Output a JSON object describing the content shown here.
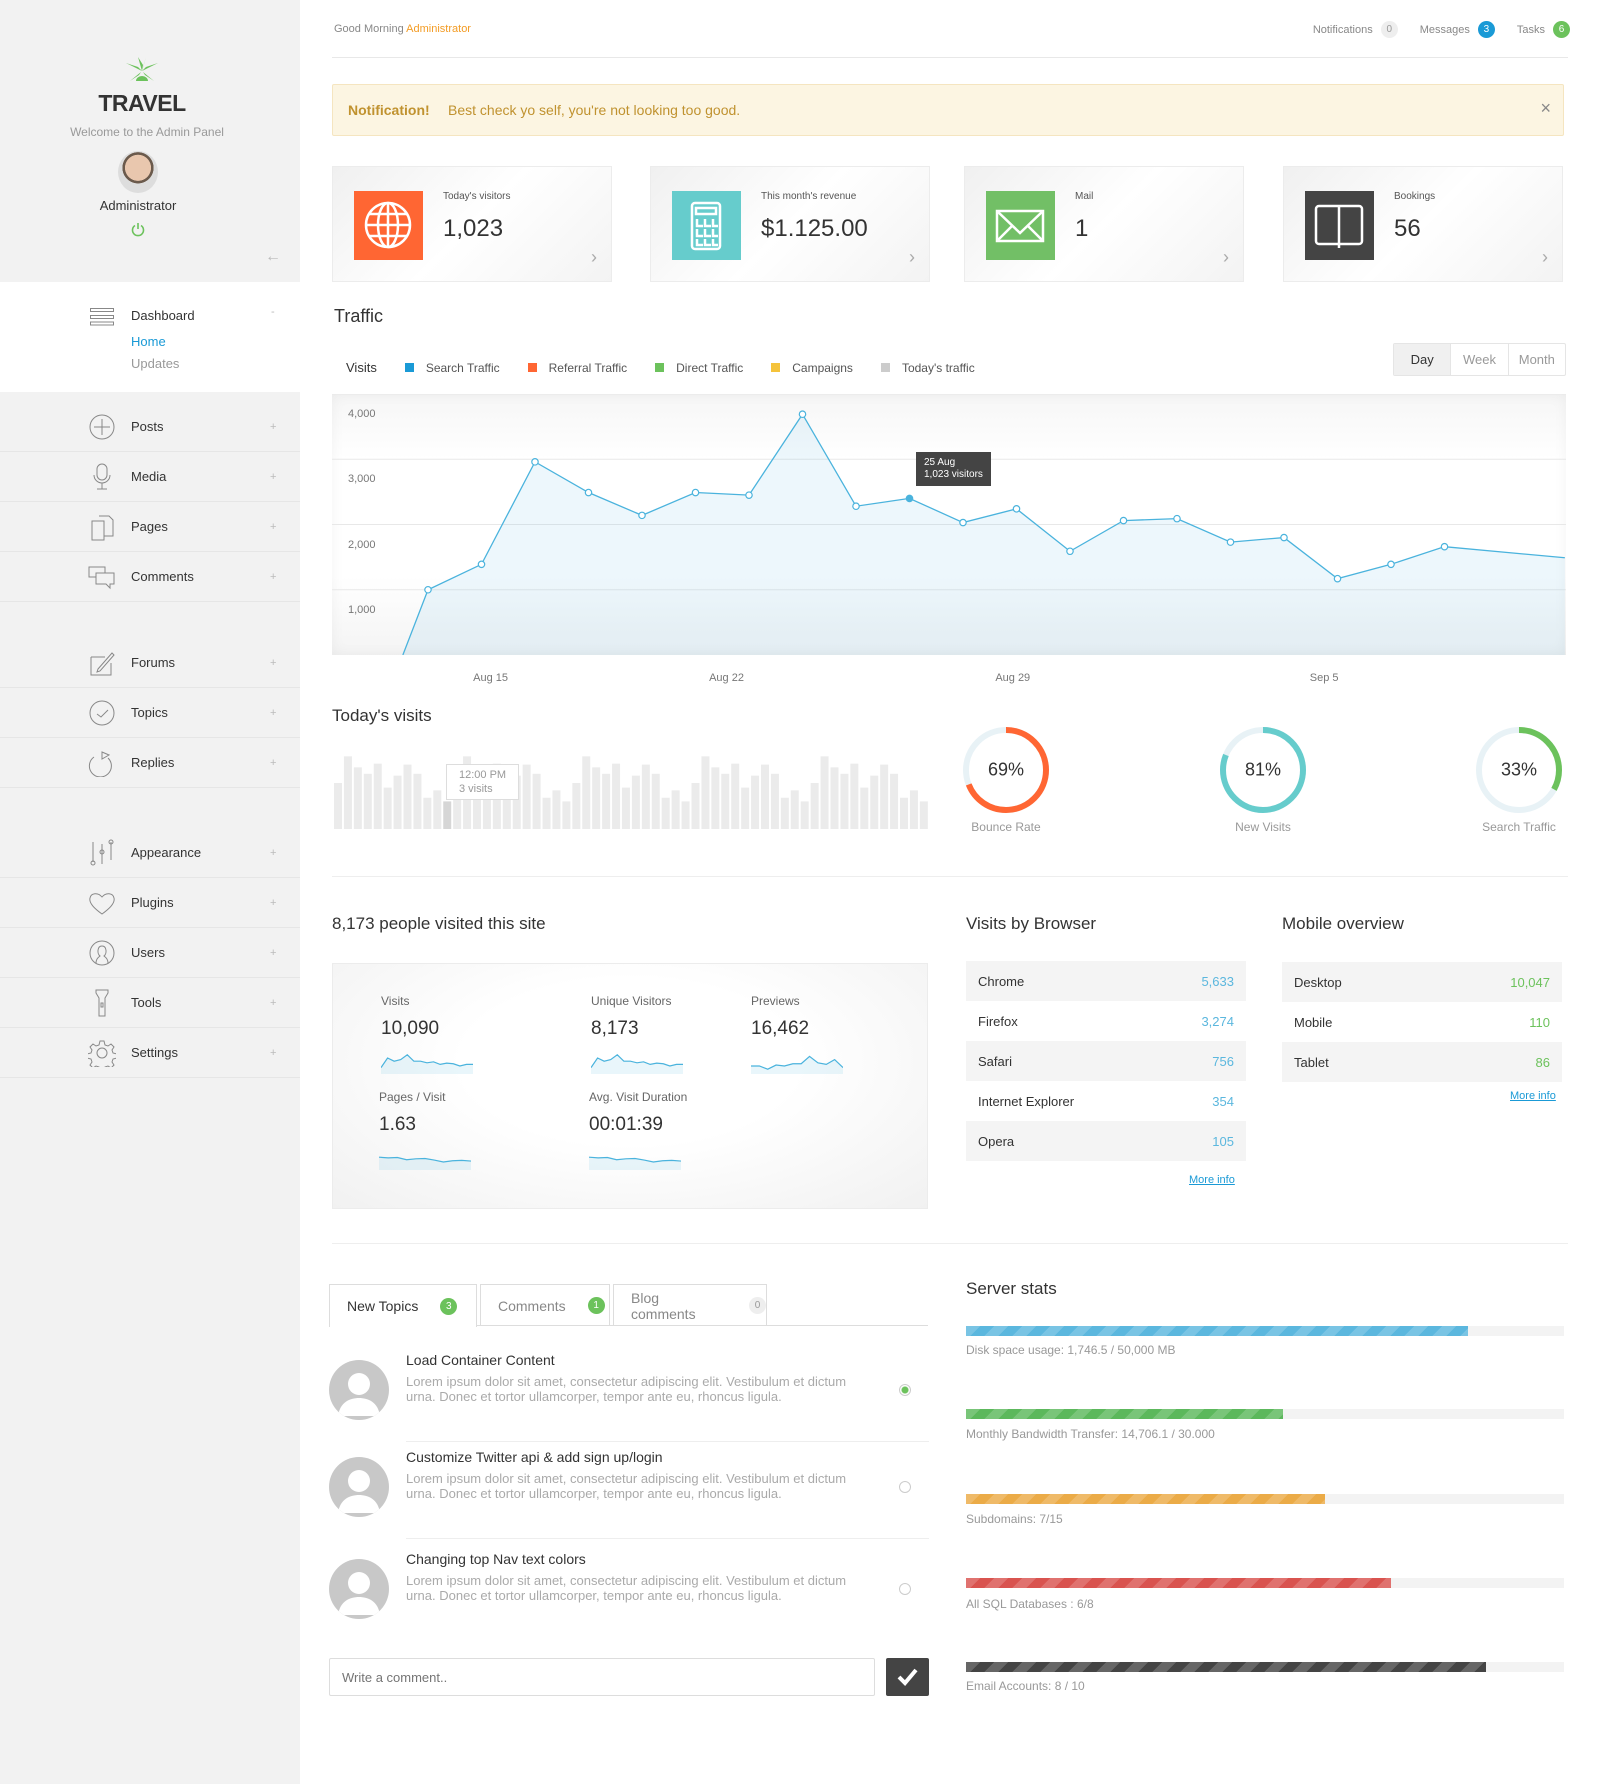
{
  "sidebar": {
    "brand": "TRAVEL",
    "welcome": "Welcome to the Admin Panel",
    "user_name": "Administrator",
    "dashboard": {
      "label": "Dashboard",
      "toggle": "-",
      "sub": [
        "Home",
        "Updates"
      ]
    },
    "groups": [
      [
        {
          "label": "Posts",
          "icon": "plus-circle-icon"
        },
        {
          "label": "Media",
          "icon": "microphone-icon"
        },
        {
          "label": "Pages",
          "icon": "pages-icon"
        },
        {
          "label": "Comments",
          "icon": "comments-icon"
        }
      ],
      [
        {
          "label": "Forums",
          "icon": "edit-icon"
        },
        {
          "label": "Topics",
          "icon": "check-circle-icon"
        },
        {
          "label": "Replies",
          "icon": "reply-icon"
        }
      ],
      [
        {
          "label": "Appearance",
          "icon": "sliders-icon"
        },
        {
          "label": "Plugins",
          "icon": "heart-icon"
        },
        {
          "label": "Users",
          "icon": "user-icon"
        },
        {
          "label": "Tools",
          "icon": "flashlight-icon"
        },
        {
          "label": "Settings",
          "icon": "gear-icon"
        }
      ]
    ],
    "expand_symbol": "+"
  },
  "header": {
    "greeting": "Good Morning",
    "user": "Administrator",
    "nav": [
      {
        "label": "Notifications",
        "count": "0",
        "color": "#eeeeee",
        "text": "#999999"
      },
      {
        "label": "Messages",
        "count": "3",
        "color": "#1a9ad6",
        "text": "#ffffff"
      },
      {
        "label": "Tasks",
        "count": "6",
        "color": "#6cc25c",
        "text": "#ffffff"
      }
    ]
  },
  "alert": {
    "title": "Notification!",
    "message": "Best check yo self, you're not looking too good.",
    "close": "×"
  },
  "cards": [
    {
      "label": "Today's visitors",
      "value": "1,023",
      "color": "#ff6633",
      "icon": "globe-icon"
    },
    {
      "label": "This month's revenue",
      "value": "$1.125.00",
      "color": "#66cccc",
      "icon": "calculator-icon"
    },
    {
      "label": "Mail",
      "value": "1",
      "color": "#72bf66",
      "icon": "mail-icon"
    },
    {
      "label": "Bookings",
      "value": "56",
      "color": "#444444",
      "icon": "book-icon"
    }
  ],
  "traffic": {
    "title": "Traffic",
    "legend_title": "Visits",
    "legend": [
      {
        "label": "Search Traffic",
        "color": "#1a9ad6"
      },
      {
        "label": "Referral Traffic",
        "color": "#ff6633"
      },
      {
        "label": "Direct Traffic",
        "color": "#6cc25c"
      },
      {
        "label": "Campaigns",
        "color": "#f5c33b"
      },
      {
        "label": "Today's traffic",
        "color": "#cccccc"
      }
    ],
    "ranges": [
      "Day",
      "Week",
      "Month"
    ],
    "active_range": "Day",
    "tooltip": {
      "line1": "25 Aug",
      "line2": "1,023 visitors"
    }
  },
  "chart_data": [
    {
      "type": "area",
      "ylim": [
        0,
        4000
      ],
      "yticks": [
        "1,000",
        "2,000",
        "3,000",
        "4,000"
      ],
      "ytick_values": [
        1000,
        2000,
        3000,
        4000
      ],
      "xticks": [
        {
          "label": "Aug 15",
          "at": 2.17
        },
        {
          "label": "Aug 22",
          "at": 6.58
        },
        {
          "label": "Aug 29",
          "at": 11.93
        },
        {
          "label": "Sep 5",
          "at": 17.75
        }
      ],
      "x": [
        0.53,
        1,
        2,
        3,
        4,
        5,
        6,
        7,
        8,
        9,
        10,
        11,
        12,
        13,
        14,
        15,
        16,
        17,
        18,
        19,
        20,
        22.25
      ],
      "values": [
        0,
        1000,
        1390,
        2960,
        2490,
        2140,
        2490,
        2450,
        3690,
        2280,
        2400,
        2030,
        2240,
        1590,
        2060,
        2090,
        1730,
        1800,
        1170,
        1390,
        1660,
        1490
      ],
      "highlight_x": 10,
      "color": "#4ab3dd",
      "grid": true
    },
    {
      "type": "bar",
      "title": "Today's visits",
      "values": [
        5,
        7.9,
        6.7,
        6,
        7.1,
        4.5,
        5.8,
        7,
        6,
        3.4,
        4.2,
        3,
        5,
        7.9,
        6.7,
        6,
        7.1,
        4.5,
        5.8,
        7,
        6,
        3.4,
        4.2,
        3,
        5,
        7.9,
        6.7,
        6,
        7.1,
        4.5,
        5.8,
        7,
        6,
        3.4,
        4.2,
        3,
        5,
        7.9,
        6.7,
        6,
        7.1,
        4.5,
        5.8,
        7,
        6,
        3.4,
        4.2,
        3,
        5,
        7.9,
        6.7,
        6,
        7.1,
        4.5,
        5.8,
        7,
        6,
        3.4,
        4.2,
        3
      ],
      "highlight_index": 11,
      "tooltip": {
        "line1": "12:00 PM",
        "line2": "3 visits"
      }
    }
  ],
  "donuts": [
    {
      "value": "69%",
      "percent": 69,
      "label": "Bounce Rate",
      "color": "#ff6633"
    },
    {
      "value": "81%",
      "percent": 81,
      "label": "New Visits",
      "color": "#66cccc"
    },
    {
      "value": "33%",
      "percent": 33,
      "label": "Search Traffic",
      "color": "#6cc25c"
    }
  ],
  "site_stats": {
    "title": "8,173 people visited this site",
    "items": [
      {
        "label": "Visits",
        "value": "10,090",
        "spark": [
          2,
          5,
          4,
          4.5,
          6,
          4,
          4,
          3.5,
          3.8,
          3,
          3.4,
          3.2,
          2.5,
          3,
          3
        ]
      },
      {
        "label": "Unique Visitors",
        "value": "8,173",
        "spark": [
          2,
          5,
          4,
          4.5,
          6,
          4,
          4,
          3.5,
          3.8,
          3,
          3.4,
          3.2,
          2.5,
          3,
          3
        ]
      },
      {
        "label": "Previews",
        "value": "16,462",
        "spark": [
          2.5,
          2.5,
          1.5,
          2.8,
          2.5,
          3.2,
          3.2,
          5.5,
          3.5,
          3,
          4.5,
          2
        ]
      },
      {
        "label": "Pages / Visit",
        "value": "1.63",
        "spark": [
          4,
          3.8,
          3.9,
          3.2,
          3.5,
          3.6,
          3.1,
          2.5,
          2.9,
          3,
          2.8
        ]
      },
      {
        "label": "Avg. Visit Duration",
        "value": "00:01:39",
        "spark": [
          4,
          3.8,
          3.9,
          3.2,
          3.5,
          3.6,
          3.1,
          2.5,
          2.9,
          3,
          2.8
        ]
      }
    ]
  },
  "browsers": {
    "title": "Visits by Browser",
    "rows": [
      {
        "name": "Chrome",
        "value": "5,633"
      },
      {
        "name": "Firefox",
        "value": "3,274"
      },
      {
        "name": "Safari",
        "value": "756"
      },
      {
        "name": "Internet Explorer",
        "value": "354"
      },
      {
        "name": "Opera",
        "value": "105"
      }
    ],
    "more": "More info",
    "value_color": "#5bb7de"
  },
  "mobile": {
    "title": "Mobile overview",
    "rows": [
      {
        "name": "Desktop",
        "value": "10,047"
      },
      {
        "name": "Mobile",
        "value": "110"
      },
      {
        "name": "Tablet",
        "value": "86"
      }
    ],
    "more": "More info",
    "value_color": "#6cc25c"
  },
  "tabs": [
    {
      "label": "New Topics",
      "count": "3",
      "active": true
    },
    {
      "label": "Comments",
      "count": "1",
      "active": false
    },
    {
      "label": "Blog comments",
      "count": "0",
      "active": false
    }
  ],
  "topics": [
    {
      "title": "Load Container Content",
      "text": "Lorem ipsum dolor sit amet, consectetur adipiscing elit. Vestibulum et dictum urna. Donec et tortor ullamcorper, tempor ante eu, rhoncus ligula.",
      "selected": true
    },
    {
      "title": "Customize Twitter api & add sign up/login",
      "text": "Lorem ipsum dolor sit amet, consectetur adipiscing elit. Vestibulum et dictum urna. Donec et tortor ullamcorper, tempor ante eu, rhoncus ligula.",
      "selected": false
    },
    {
      "title": "Changing top Nav text colors",
      "text": "Lorem ipsum dolor sit amet, consectetur adipiscing elit. Vestibulum et dictum urna. Donec et tortor ullamcorper, tempor ante eu, rhoncus ligula.",
      "selected": false
    }
  ],
  "comment_input": {
    "placeholder": "Write a comment.."
  },
  "server": {
    "title": "Server stats",
    "bars": [
      {
        "label": "Disk space usage: 1,746.5 / 50,000 MB",
        "percent": 84,
        "color": "#5bb7de"
      },
      {
        "label": "Monthly Bandwidth Transfer: 14,706.1 / 30.000",
        "percent": 53,
        "color": "#5cb85c"
      },
      {
        "label": "Subdomains: 7/15",
        "percent": 60,
        "color": "#ebab47"
      },
      {
        "label": "All SQL Databases : 6/8",
        "percent": 71,
        "color": "#d9534f"
      },
      {
        "label": "Email Accounts: 8 / 10",
        "percent": 87,
        "color": "#444444"
      }
    ]
  }
}
